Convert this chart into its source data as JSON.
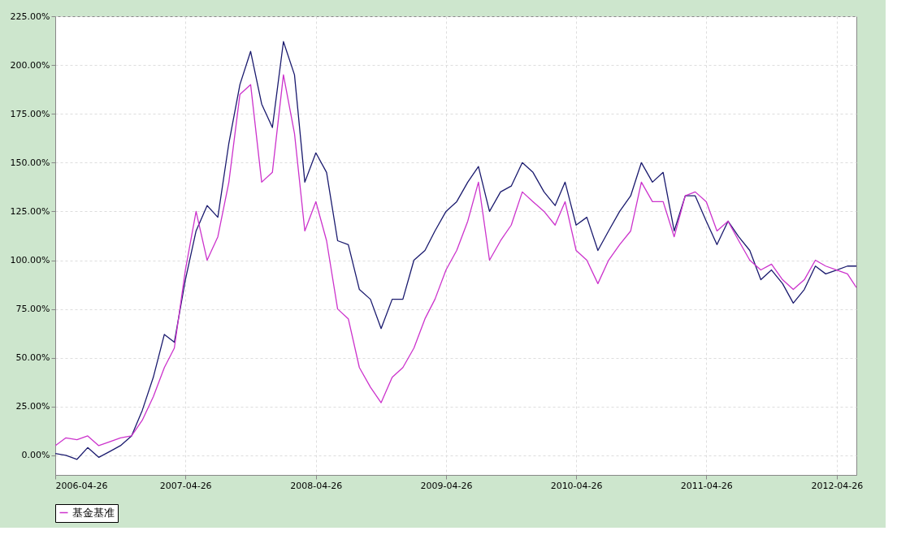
{
  "chart_data": {
    "type": "line",
    "x": [
      "2006-04-26",
      "2006-05-26",
      "2006-06-26",
      "2006-07-26",
      "2006-08-26",
      "2006-09-26",
      "2006-10-26",
      "2006-11-26",
      "2006-12-26",
      "2007-01-26",
      "2007-02-26",
      "2007-03-26",
      "2007-04-26",
      "2007-05-26",
      "2007-06-26",
      "2007-07-26",
      "2007-08-26",
      "2007-09-26",
      "2007-10-26",
      "2007-11-26",
      "2007-12-26",
      "2008-01-26",
      "2008-02-26",
      "2008-03-26",
      "2008-04-26",
      "2008-05-26",
      "2008-06-26",
      "2008-07-26",
      "2008-08-26",
      "2008-09-26",
      "2008-10-26",
      "2008-11-26",
      "2008-12-26",
      "2009-01-26",
      "2009-02-26",
      "2009-03-26",
      "2009-04-26",
      "2009-05-26",
      "2009-06-26",
      "2009-07-26",
      "2009-08-26",
      "2009-09-26",
      "2009-10-26",
      "2009-11-26",
      "2009-12-26",
      "2010-01-26",
      "2010-02-26",
      "2010-03-26",
      "2010-04-26",
      "2010-05-26",
      "2010-06-26",
      "2010-07-26",
      "2010-08-26",
      "2010-09-26",
      "2010-10-26",
      "2010-11-26",
      "2010-12-26",
      "2011-01-26",
      "2011-02-26",
      "2011-03-26",
      "2011-04-26",
      "2011-05-26",
      "2011-06-26",
      "2011-07-26",
      "2011-08-26",
      "2011-09-26",
      "2011-10-26",
      "2011-11-26",
      "2011-12-26",
      "2012-01-26",
      "2012-02-26",
      "2012-03-26",
      "2012-04-26",
      "2012-05-26",
      "2012-06-20"
    ],
    "series": [
      {
        "color": "#1a1a6e",
        "values": [
          1,
          0,
          -2,
          4,
          -1,
          2,
          5,
          10,
          23,
          40,
          62,
          58,
          90,
          115,
          128,
          122,
          160,
          190,
          207,
          180,
          168,
          212,
          195,
          140,
          155,
          145,
          110,
          108,
          85,
          80,
          65,
          80,
          80,
          100,
          105,
          115,
          125,
          130,
          140,
          148,
          125,
          135,
          138,
          150,
          145,
          135,
          128,
          140,
          118,
          122,
          105,
          115,
          125,
          133,
          150,
          140,
          145,
          115,
          133,
          133,
          120,
          108,
          120,
          112,
          105,
          90,
          95,
          88,
          78,
          85,
          97,
          93,
          95,
          97,
          97
        ]
      },
      {
        "name": "基金基准",
        "color": "#cc33cc",
        "values": [
          5,
          9,
          8,
          10,
          5,
          7,
          9,
          10,
          18,
          30,
          45,
          55,
          95,
          125,
          100,
          112,
          140,
          185,
          190,
          140,
          145,
          195,
          165,
          115,
          130,
          110,
          75,
          70,
          45,
          35,
          27,
          40,
          45,
          55,
          70,
          80,
          95,
          105,
          120,
          140,
          100,
          110,
          118,
          135,
          130,
          125,
          118,
          130,
          105,
          100,
          88,
          100,
          108,
          115,
          140,
          130,
          130,
          112,
          133,
          135,
          130,
          115,
          120,
          110,
          100,
          95,
          98,
          90,
          85,
          90,
          100,
          97,
          95,
          93,
          86
        ]
      }
    ],
    "xlim": [
      "2006-04-26",
      "2012-06-20"
    ],
    "xticks": [
      "2006-04-26",
      "2007-04-26",
      "2008-04-26",
      "2009-04-26",
      "2010-04-26",
      "2011-04-26",
      "2012-04-26"
    ],
    "ylim": [
      -10,
      225
    ],
    "yticks": [
      {
        "value": 0,
        "label": "0.00%"
      },
      {
        "value": 25,
        "label": "25.00%"
      },
      {
        "value": 50,
        "label": "50.00%"
      },
      {
        "value": 75,
        "label": "75.00%"
      },
      {
        "value": 100,
        "label": "100.00%"
      },
      {
        "value": 125,
        "label": "125.00%"
      },
      {
        "value": 150,
        "label": "150.00%"
      },
      {
        "value": 175,
        "label": "175.00%"
      },
      {
        "value": 200,
        "label": "200.00%"
      },
      {
        "value": 225,
        "label": "225.00%"
      }
    ],
    "grid": true,
    "legend": "bottom"
  }
}
